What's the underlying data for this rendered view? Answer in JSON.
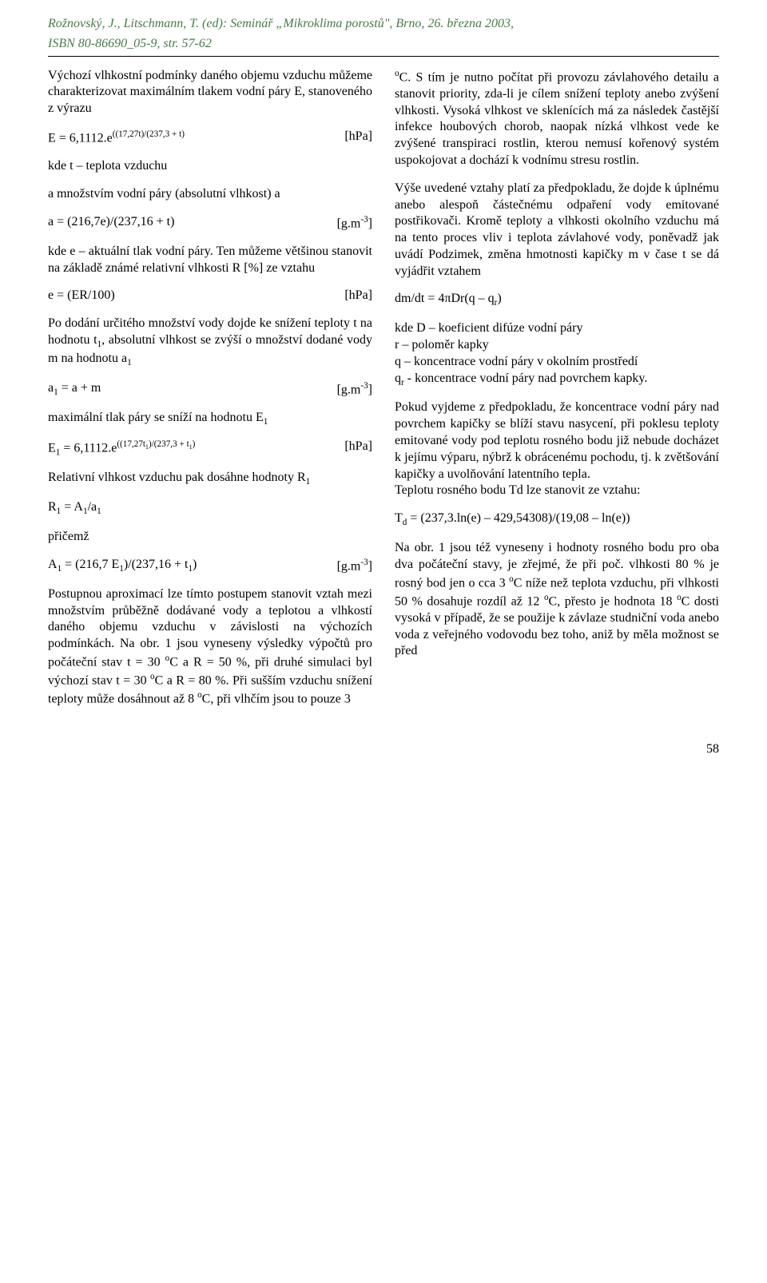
{
  "header": {
    "ref_line1": "Rožnovský, J., Litschmann, T. (ed): Seminář „Mikroklima porostů\", Brno, 26. března 2003,",
    "ref_line2": "ISBN 80-86690_05-9, str. 57-62"
  },
  "left_col": {
    "p1": "Výchozí vlhkostní podmínky daného objemu vzduchu můžeme charakterizovat maximálním tlakem vodní páry E, stanoveného z výrazu",
    "eq1_left": "E = 6,1112.e((17,27t)/(237,3 + t)",
    "eq1_right": "[hPa]",
    "p2": "kde t – teplota vzduchu",
    "p3": "a množstvím vodní páry (absolutní vlhkost) a",
    "eq2_left": "a = (216,7e)/(237,16 + t)",
    "eq2_right": "[g.m-3]",
    "p4": "kde e – aktuální tlak vodní páry. Ten můžeme většinou stanovit na základě známé relativní vlhkosti R [%] ze vztahu",
    "eq3_left": "e = (ER/100)",
    "eq3_right": "[hPa]",
    "p5": "Po dodání určitého množství vody dojde ke snížení teploty t na hodnotu t1, absolutní vlhkost se zvýší o množství dodané vody m na hodnotu a1",
    "eq4_left": "a1 = a + m",
    "eq4_right": "[g.m-3]",
    "p6": "maximální tlak páry se sníží na hodnotu E1",
    "eq5_left": "E1 = 6,1112.e((17,27t1)/(237,3 + t1)",
    "eq5_right": "[hPa]",
    "p7": "Relativní vlhkost vzduchu pak dosáhne hodnoty R1",
    "p8": "R1 =  A1/a1",
    "p9": "přičemž",
    "eq6_left": "A1 = (216,7 E1)/(237,16 + t1)",
    "eq6_right": "[g.m-3]",
    "p10": "Postupnou aproximací lze tímto postupem stanovit vztah mezi množstvím průběžně dodávané vody a teplotou a vlhkostí daného objemu vzduchu v závislosti na výchozích podmínkách. Na obr. 1 jsou vyneseny výsledky výpočtů pro počáteční stav t = 30 oC a R = 50 %, při druhé simulaci byl výchozí stav  t = 30 oC a R = 80 %. Při sušším vzduchu snížení teploty může dosáhnout až 8 oC, při vlhčím jsou to pouze  3"
  },
  "right_col": {
    "p1": "oC.  S tím je nutno počítat při provozu závlahového detailu a stanovit priority, zda-li je cílem snížení teploty anebo zvýšení vlhkosti.  Vysoká vlhkost ve sklenících má za následek častější infekce houbových chorob, naopak nízká vlhkost vede ke zvýšené transpiraci rostlin, kterou nemusí kořenový systém uspokojovat a dochází k vodnímu stresu rostlin.",
    "p2": "Výše uvedené vztahy platí za předpokladu, že dojde k úplnému anebo alespoň částečnému odpaření vody emitované postřikovači. Kromě teploty a vlhkosti okolního vzduchu má na tento proces vliv i teplota závlahové vody, poněvadž jak uvádí  Podzimek, změna hmotnosti kapičky m v čase t se dá vyjádřit vztahem",
    "eq1": "dm/dt = 4πDr(q – qr)",
    "p3": "kde D – koeficient difúze vodní páry",
    "p4": "r – poloměr kapky",
    "p5": "q – koncentrace vodní páry v okolním prostředí",
    "p6": "qr - koncentrace vodní páry nad povrchem kapky.",
    "p7": "Pokud vyjdeme z předpokladu, že koncentrace vodní páry nad povrchem kapičky se blíží stavu nasycení, při poklesu teploty emitované vody pod teplotu rosného bodu již nebude docházet k jejímu výparu, nýbrž k obrácenému pochodu, tj. k zvětšování kapičky a uvolňování latentního tepla.",
    "p8": "Teplotu rosného bodu Td lze stanovit ze vztahu:",
    "eq2": "Td = (237,3.ln(e) – 429,54308)/(19,08 – ln(e))",
    "p9": "Na obr. 1 jsou též vyneseny i hodnoty rosného bodu pro oba dva počáteční stavy, je zřejmé, že při poč. vlhkosti 80 % je rosný bod jen o cca 3 oC níže než teplota vzduchu, při vlhkosti 50 % dosahuje rozdíl až 12 oC, přesto je hodnota 18 oC dosti vysoká v případě, že se použije k závlaze studniční voda anebo voda z veřejného vodovodu bez toho, aniž by měla možnost se před"
  },
  "page_num": "58"
}
